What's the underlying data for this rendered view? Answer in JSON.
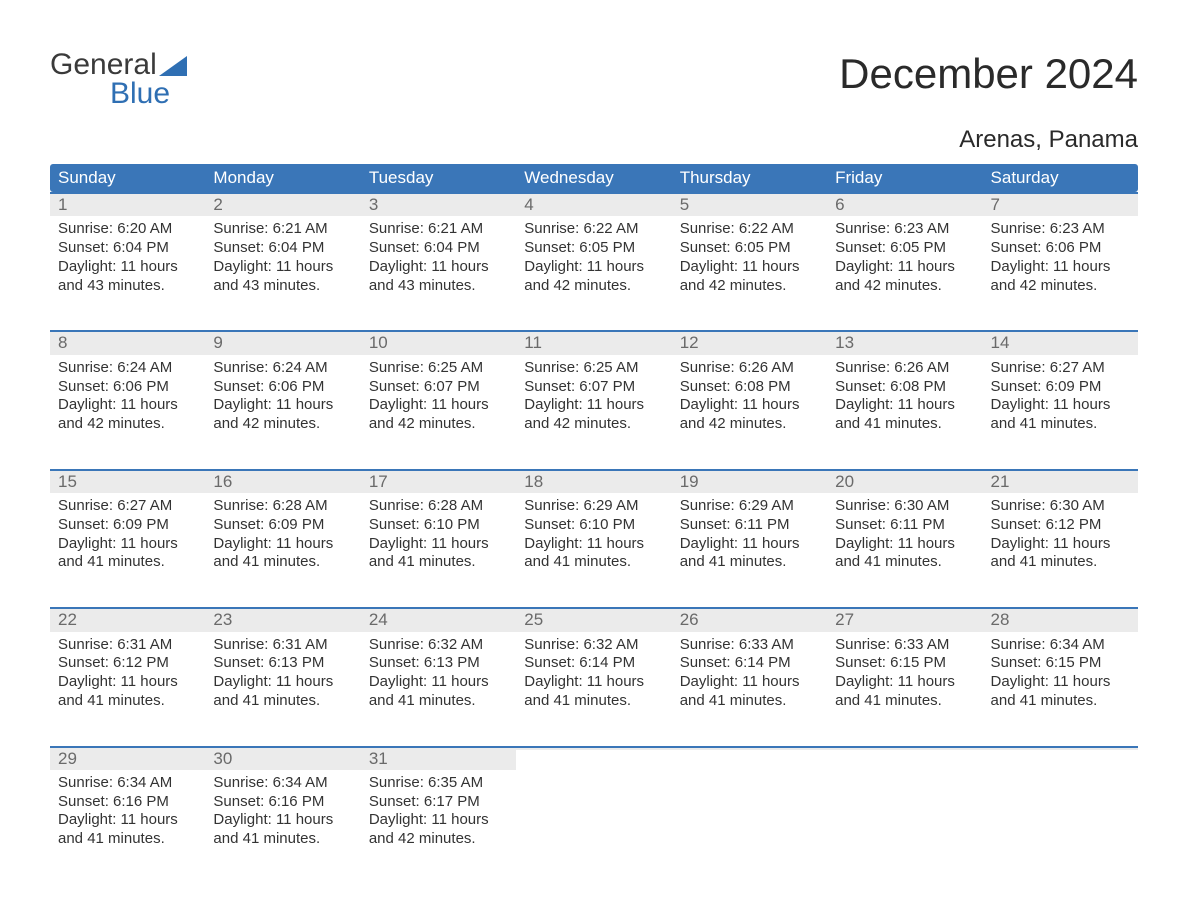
{
  "brand": {
    "text_top": "General",
    "text_bottom": "Blue",
    "top_color": "#3a3a3a",
    "bottom_color": "#2f6fb3",
    "sail_color": "#2f6fb3"
  },
  "title": "December 2024",
  "subtitle": "Arenas, Panama",
  "colors": {
    "header_bg": "#3a76b8",
    "header_text": "#ffffff",
    "week_border": "#3a76b8",
    "daynum_bg": "#ebebeb",
    "daynum_text": "#6a6a6a",
    "body_text": "#333333",
    "page_bg": "#ffffff"
  },
  "weekdays": [
    "Sunday",
    "Monday",
    "Tuesday",
    "Wednesday",
    "Thursday",
    "Friday",
    "Saturday"
  ],
  "weeks": [
    [
      {
        "num": "1",
        "sunrise": "Sunrise: 6:20 AM",
        "sunset": "Sunset: 6:04 PM",
        "day1": "Daylight: 11 hours",
        "day2": "and 43 minutes."
      },
      {
        "num": "2",
        "sunrise": "Sunrise: 6:21 AM",
        "sunset": "Sunset: 6:04 PM",
        "day1": "Daylight: 11 hours",
        "day2": "and 43 minutes."
      },
      {
        "num": "3",
        "sunrise": "Sunrise: 6:21 AM",
        "sunset": "Sunset: 6:04 PM",
        "day1": "Daylight: 11 hours",
        "day2": "and 43 minutes."
      },
      {
        "num": "4",
        "sunrise": "Sunrise: 6:22 AM",
        "sunset": "Sunset: 6:05 PM",
        "day1": "Daylight: 11 hours",
        "day2": "and 42 minutes."
      },
      {
        "num": "5",
        "sunrise": "Sunrise: 6:22 AM",
        "sunset": "Sunset: 6:05 PM",
        "day1": "Daylight: 11 hours",
        "day2": "and 42 minutes."
      },
      {
        "num": "6",
        "sunrise": "Sunrise: 6:23 AM",
        "sunset": "Sunset: 6:05 PM",
        "day1": "Daylight: 11 hours",
        "day2": "and 42 minutes."
      },
      {
        "num": "7",
        "sunrise": "Sunrise: 6:23 AM",
        "sunset": "Sunset: 6:06 PM",
        "day1": "Daylight: 11 hours",
        "day2": "and 42 minutes."
      }
    ],
    [
      {
        "num": "8",
        "sunrise": "Sunrise: 6:24 AM",
        "sunset": "Sunset: 6:06 PM",
        "day1": "Daylight: 11 hours",
        "day2": "and 42 minutes."
      },
      {
        "num": "9",
        "sunrise": "Sunrise: 6:24 AM",
        "sunset": "Sunset: 6:06 PM",
        "day1": "Daylight: 11 hours",
        "day2": "and 42 minutes."
      },
      {
        "num": "10",
        "sunrise": "Sunrise: 6:25 AM",
        "sunset": "Sunset: 6:07 PM",
        "day1": "Daylight: 11 hours",
        "day2": "and 42 minutes."
      },
      {
        "num": "11",
        "sunrise": "Sunrise: 6:25 AM",
        "sunset": "Sunset: 6:07 PM",
        "day1": "Daylight: 11 hours",
        "day2": "and 42 minutes."
      },
      {
        "num": "12",
        "sunrise": "Sunrise: 6:26 AM",
        "sunset": "Sunset: 6:08 PM",
        "day1": "Daylight: 11 hours",
        "day2": "and 42 minutes."
      },
      {
        "num": "13",
        "sunrise": "Sunrise: 6:26 AM",
        "sunset": "Sunset: 6:08 PM",
        "day1": "Daylight: 11 hours",
        "day2": "and 41 minutes."
      },
      {
        "num": "14",
        "sunrise": "Sunrise: 6:27 AM",
        "sunset": "Sunset: 6:09 PM",
        "day1": "Daylight: 11 hours",
        "day2": "and 41 minutes."
      }
    ],
    [
      {
        "num": "15",
        "sunrise": "Sunrise: 6:27 AM",
        "sunset": "Sunset: 6:09 PM",
        "day1": "Daylight: 11 hours",
        "day2": "and 41 minutes."
      },
      {
        "num": "16",
        "sunrise": "Sunrise: 6:28 AM",
        "sunset": "Sunset: 6:09 PM",
        "day1": "Daylight: 11 hours",
        "day2": "and 41 minutes."
      },
      {
        "num": "17",
        "sunrise": "Sunrise: 6:28 AM",
        "sunset": "Sunset: 6:10 PM",
        "day1": "Daylight: 11 hours",
        "day2": "and 41 minutes."
      },
      {
        "num": "18",
        "sunrise": "Sunrise: 6:29 AM",
        "sunset": "Sunset: 6:10 PM",
        "day1": "Daylight: 11 hours",
        "day2": "and 41 minutes."
      },
      {
        "num": "19",
        "sunrise": "Sunrise: 6:29 AM",
        "sunset": "Sunset: 6:11 PM",
        "day1": "Daylight: 11 hours",
        "day2": "and 41 minutes."
      },
      {
        "num": "20",
        "sunrise": "Sunrise: 6:30 AM",
        "sunset": "Sunset: 6:11 PM",
        "day1": "Daylight: 11 hours",
        "day2": "and 41 minutes."
      },
      {
        "num": "21",
        "sunrise": "Sunrise: 6:30 AM",
        "sunset": "Sunset: 6:12 PM",
        "day1": "Daylight: 11 hours",
        "day2": "and 41 minutes."
      }
    ],
    [
      {
        "num": "22",
        "sunrise": "Sunrise: 6:31 AM",
        "sunset": "Sunset: 6:12 PM",
        "day1": "Daylight: 11 hours",
        "day2": "and 41 minutes."
      },
      {
        "num": "23",
        "sunrise": "Sunrise: 6:31 AM",
        "sunset": "Sunset: 6:13 PM",
        "day1": "Daylight: 11 hours",
        "day2": "and 41 minutes."
      },
      {
        "num": "24",
        "sunrise": "Sunrise: 6:32 AM",
        "sunset": "Sunset: 6:13 PM",
        "day1": "Daylight: 11 hours",
        "day2": "and 41 minutes."
      },
      {
        "num": "25",
        "sunrise": "Sunrise: 6:32 AM",
        "sunset": "Sunset: 6:14 PM",
        "day1": "Daylight: 11 hours",
        "day2": "and 41 minutes."
      },
      {
        "num": "26",
        "sunrise": "Sunrise: 6:33 AM",
        "sunset": "Sunset: 6:14 PM",
        "day1": "Daylight: 11 hours",
        "day2": "and 41 minutes."
      },
      {
        "num": "27",
        "sunrise": "Sunrise: 6:33 AM",
        "sunset": "Sunset: 6:15 PM",
        "day1": "Daylight: 11 hours",
        "day2": "and 41 minutes."
      },
      {
        "num": "28",
        "sunrise": "Sunrise: 6:34 AM",
        "sunset": "Sunset: 6:15 PM",
        "day1": "Daylight: 11 hours",
        "day2": "and 41 minutes."
      }
    ],
    [
      {
        "num": "29",
        "sunrise": "Sunrise: 6:34 AM",
        "sunset": "Sunset: 6:16 PM",
        "day1": "Daylight: 11 hours",
        "day2": "and 41 minutes."
      },
      {
        "num": "30",
        "sunrise": "Sunrise: 6:34 AM",
        "sunset": "Sunset: 6:16 PM",
        "day1": "Daylight: 11 hours",
        "day2": "and 41 minutes."
      },
      {
        "num": "31",
        "sunrise": "Sunrise: 6:35 AM",
        "sunset": "Sunset: 6:17 PM",
        "day1": "Daylight: 11 hours",
        "day2": "and 42 minutes."
      },
      {
        "empty": true,
        "num": "",
        "sunrise": "",
        "sunset": "",
        "day1": "",
        "day2": ""
      },
      {
        "empty": true,
        "num": "",
        "sunrise": "",
        "sunset": "",
        "day1": "",
        "day2": ""
      },
      {
        "empty": true,
        "num": "",
        "sunrise": "",
        "sunset": "",
        "day1": "",
        "day2": ""
      },
      {
        "empty": true,
        "num": "",
        "sunrise": "",
        "sunset": "",
        "day1": "",
        "day2": ""
      }
    ]
  ]
}
